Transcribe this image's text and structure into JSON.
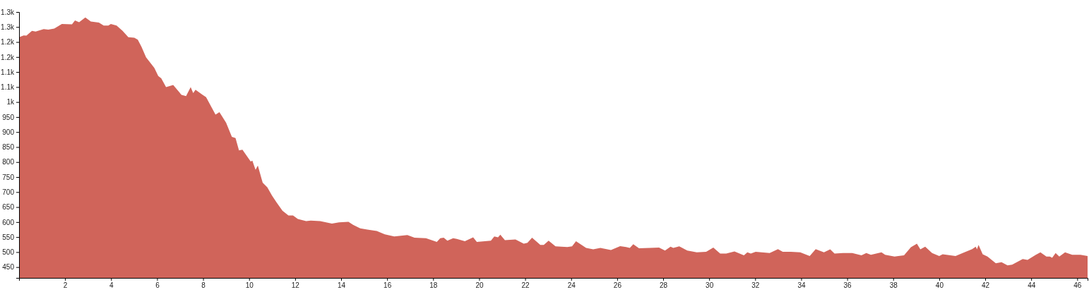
{
  "chart_data": {
    "type": "area",
    "xlim": [
      0,
      46.45
    ],
    "ylim": [
      414,
      1300
    ],
    "xticks": [
      2,
      4,
      6,
      8,
      10,
      12,
      14,
      16,
      18,
      20,
      22,
      24,
      26,
      28,
      30,
      32,
      34,
      36,
      38,
      40,
      42,
      44,
      46
    ],
    "yticks": [
      450,
      500,
      550,
      600,
      650,
      700,
      750,
      800,
      850,
      900,
      950,
      {
        "value": 1000,
        "label": "1k"
      },
      {
        "value": 1050,
        "label": "1.1k"
      },
      {
        "value": 1100,
        "label": "1.1k"
      },
      {
        "value": 1150,
        "label": "1.2k"
      },
      {
        "value": 1200,
        "label": "1.2k"
      },
      {
        "value": 1250,
        "label": "1.3k"
      },
      {
        "value": 1300,
        "label": "1.3k"
      }
    ],
    "grid": false,
    "series": [
      {
        "color": "#d0645a",
        "x": [
          0,
          0.2,
          0.32,
          0.56,
          0.72,
          1.07,
          1.27,
          1.53,
          1.86,
          2.3,
          2.43,
          2.61,
          2.88,
          3.12,
          3.47,
          3.68,
          3.88,
          3.99,
          4.24,
          4.5,
          4.75,
          5.01,
          5.16,
          5.32,
          5.52,
          5.88,
          6.05,
          6.18,
          6.39,
          6.7,
          7.06,
          7.26,
          7.46,
          7.57,
          7.67,
          7.98,
          8.13,
          8.54,
          8.71,
          9.0,
          9.25,
          9.41,
          9.56,
          9.71,
          10.07,
          10.14,
          10.28,
          10.38,
          10.59,
          10.79,
          11.0,
          11.2,
          11.45,
          11.71,
          11.91,
          12.12,
          12.48,
          12.68,
          13.09,
          13.6,
          13.91,
          14.32,
          14.52,
          14.83,
          15.14,
          15.55,
          15.9,
          16.31,
          16.88,
          17.19,
          17.69,
          18.16,
          18.31,
          18.46,
          18.62,
          18.87,
          19.03,
          19.38,
          19.74,
          19.9,
          20.51,
          20.66,
          20.82,
          20.92,
          21.12,
          21.58,
          21.94,
          22.1,
          22.3,
          22.66,
          22.81,
          23.02,
          23.32,
          23.83,
          24.04,
          24.21,
          24.65,
          24.96,
          25.27,
          25.73,
          26.13,
          26.39,
          26.55,
          26.7,
          26.95,
          27.42,
          27.82,
          28.08,
          28.32,
          28.44,
          28.7,
          29.05,
          29.26,
          29.46,
          29.87,
          30.18,
          30.48,
          30.74,
          31.1,
          31.51,
          31.66,
          31.81,
          32.02,
          32.63,
          32.99,
          33.2,
          33.55,
          33.96,
          34.37,
          34.63,
          34.99,
          35.26,
          35.45,
          35.81,
          36.22,
          36.62,
          36.83,
          37.03,
          37.49,
          37.65,
          38.06,
          38.47,
          38.77,
          39.03,
          39.18,
          39.39,
          39.69,
          40.0,
          40.15,
          40.71,
          41.02,
          41.43,
          41.59,
          41.64,
          41.71,
          41.89,
          42.1,
          42.46,
          42.71,
          42.97,
          43.17,
          43.63,
          43.84,
          44.2,
          44.4,
          44.66,
          44.81,
          44.91,
          45.06,
          45.22,
          45.47,
          45.78,
          46.14,
          46.45
        ],
        "values": [
          1216,
          1222,
          1221,
          1237,
          1235,
          1243,
          1241,
          1245,
          1260,
          1259,
          1272,
          1266,
          1282,
          1268,
          1265,
          1255,
          1255,
          1260,
          1255,
          1237,
          1216,
          1214,
          1208,
          1184,
          1149,
          1114,
          1087,
          1079,
          1050,
          1057,
          1024,
          1020,
          1050,
          1030,
          1041,
          1024,
          1016,
          958,
          966,
          931,
          884,
          880,
          839,
          841,
          802,
          805,
          774,
          788,
          731,
          716,
          688,
          665,
          638,
          622,
          622,
          610,
          603,
          605,
          603,
          595,
          599,
          601,
          591,
          579,
          575,
          570,
          559,
          552,
          557,
          548,
          546,
          534,
          546,
          548,
          538,
          546,
          544,
          536,
          549,
          534,
          538,
          552,
          549,
          558,
          540,
          542,
          528,
          531,
          548,
          524,
          524,
          538,
          519,
          517,
          519,
          536,
          514,
          509,
          514,
          507,
          520,
          517,
          514,
          526,
          513,
          514,
          515,
          505,
          518,
          514,
          519,
          505,
          502,
          499,
          501,
          515,
          495,
          495,
          502,
          489,
          499,
          495,
          501,
          497,
          510,
          501,
          501,
          499,
          487,
          510,
          499,
          509,
          495,
          497,
          497,
          489,
          497,
          491,
          499,
          491,
          485,
          489,
          516,
          528,
          509,
          518,
          497,
          487,
          493,
          487,
          497,
          510,
          518,
          509,
          524,
          493,
          485,
          463,
          466,
          456,
          458,
          477,
          474,
          491,
          499,
          485,
          485,
          481,
          497,
          485,
          499,
          491,
          491,
          487
        ]
      }
    ]
  }
}
